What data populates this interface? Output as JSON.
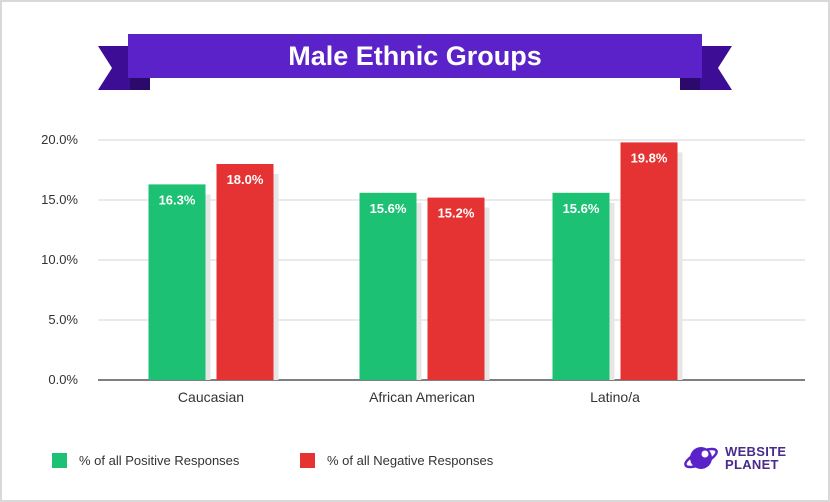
{
  "colors": {
    "banner": "#5a22c8",
    "banner_dark": "#3d0e95",
    "positive": "#1cc173",
    "negative": "#e53232",
    "grid": "#d6d6d6",
    "axis": "#555555",
    "logo": "#5a22c8"
  },
  "chart_data": {
    "type": "bar",
    "title": "Male Ethnic Groups",
    "categories": [
      "Caucasian",
      "African American",
      "Latino/a"
    ],
    "series": [
      {
        "name": "% of all Positive Responses",
        "values": [
          16.3,
          15.6,
          15.6
        ],
        "labels": [
          "16.3%",
          "15.6%",
          "15.6%"
        ]
      },
      {
        "name": "% of all Negative Responses",
        "values": [
          18.0,
          15.2,
          19.8
        ],
        "labels": [
          "18.0%",
          "15.2%",
          "19.8%"
        ]
      }
    ],
    "yticks": [
      "0.0%",
      "5.0%",
      "10.0%",
      "15.0%",
      "20.0%"
    ],
    "ytick_values": [
      0,
      5,
      10,
      15,
      20
    ],
    "ylim": [
      0,
      20
    ],
    "grid": true,
    "legend_position": "bottom-left"
  },
  "branding": {
    "logo_line1": "WEBSITE",
    "logo_line2": "PLANET",
    "icon": "planet-logo-icon"
  }
}
